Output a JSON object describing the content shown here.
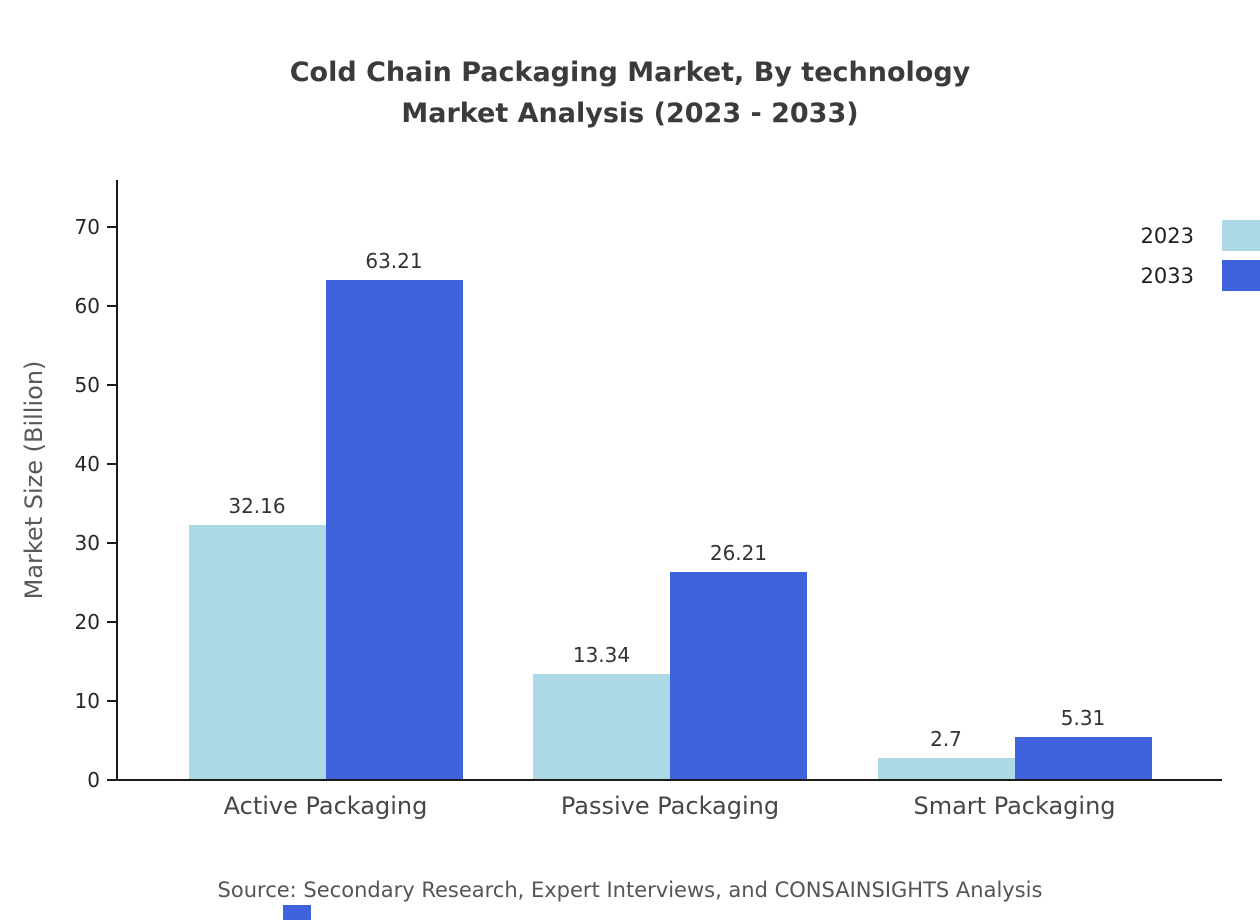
{
  "title_line1": "Cold Chain Packaging Market, By technology",
  "title_line2": "Market Analysis (2023 - 2033)",
  "source_text": "Source: Secondary Research, Expert Interviews, and CONSAINSIGHTS Analysis",
  "chart_data": {
    "type": "bar",
    "title": "Cold Chain Packaging Market, By technology Market Analysis (2023 - 2033)",
    "categories": [
      "Active Packaging",
      "Passive Packaging",
      "Smart Packaging"
    ],
    "series": [
      {
        "name": "2023",
        "color": "#add8e6",
        "values": [
          32.16,
          13.34,
          2.7
        ]
      },
      {
        "name": "2033",
        "color": "#3e63dd",
        "values": [
          63.21,
          26.21,
          5.31
        ]
      }
    ],
    "xlabel": "",
    "ylabel": "Market Size (Billion)",
    "ylim": [
      0,
      76
    ],
    "yticks": [
      0,
      10,
      20,
      30,
      40,
      50,
      60,
      70
    ],
    "grid": false,
    "legend_position": "top-right"
  }
}
